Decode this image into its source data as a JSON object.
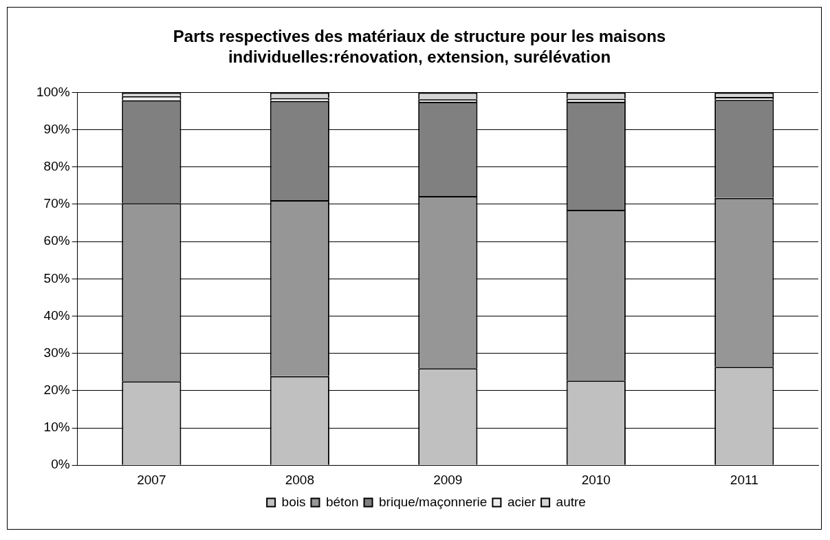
{
  "chart_data": {
    "type": "bar",
    "title": "Parts respectives des matériaux de structure pour les maisons individuelles:rénovation, extension, surélévation",
    "categories": [
      "2007",
      "2008",
      "2009",
      "2010",
      "2011"
    ],
    "stacked": true,
    "series": [
      {
        "name": "bois",
        "color": "#c0c0c0",
        "values": [
          22.5,
          23.9,
          26.0,
          22.7,
          26.4
        ]
      },
      {
        "name": "béton",
        "color": "#969696",
        "values": [
          47.8,
          47.2,
          46.2,
          45.8,
          45.3
        ]
      },
      {
        "name": "brique/maçonnerie",
        "color": "#808080",
        "values": [
          27.6,
          26.6,
          25.3,
          29.0,
          26.3
        ]
      },
      {
        "name": "acier",
        "color": "#ececec",
        "values": [
          1.1,
          0.8,
          0.7,
          0.8,
          0.8
        ]
      },
      {
        "name": "autre",
        "color": "#d4d4d4",
        "values": [
          1.0,
          1.5,
          1.8,
          1.7,
          1.2
        ]
      }
    ],
    "ylim": [
      0,
      100
    ],
    "yticks": [
      {
        "value": 0,
        "label": "0%"
      },
      {
        "value": 10,
        "label": "10%"
      },
      {
        "value": 20,
        "label": "20%"
      },
      {
        "value": 30,
        "label": "30%"
      },
      {
        "value": 40,
        "label": "40%"
      },
      {
        "value": 50,
        "label": "50%"
      },
      {
        "value": 60,
        "label": "60%"
      },
      {
        "value": 70,
        "label": "70%"
      },
      {
        "value": 80,
        "label": "80%"
      },
      {
        "value": 90,
        "label": "90%"
      },
      {
        "value": 100,
        "label": "100%"
      }
    ],
    "grid": "y",
    "legend": "bottom"
  }
}
